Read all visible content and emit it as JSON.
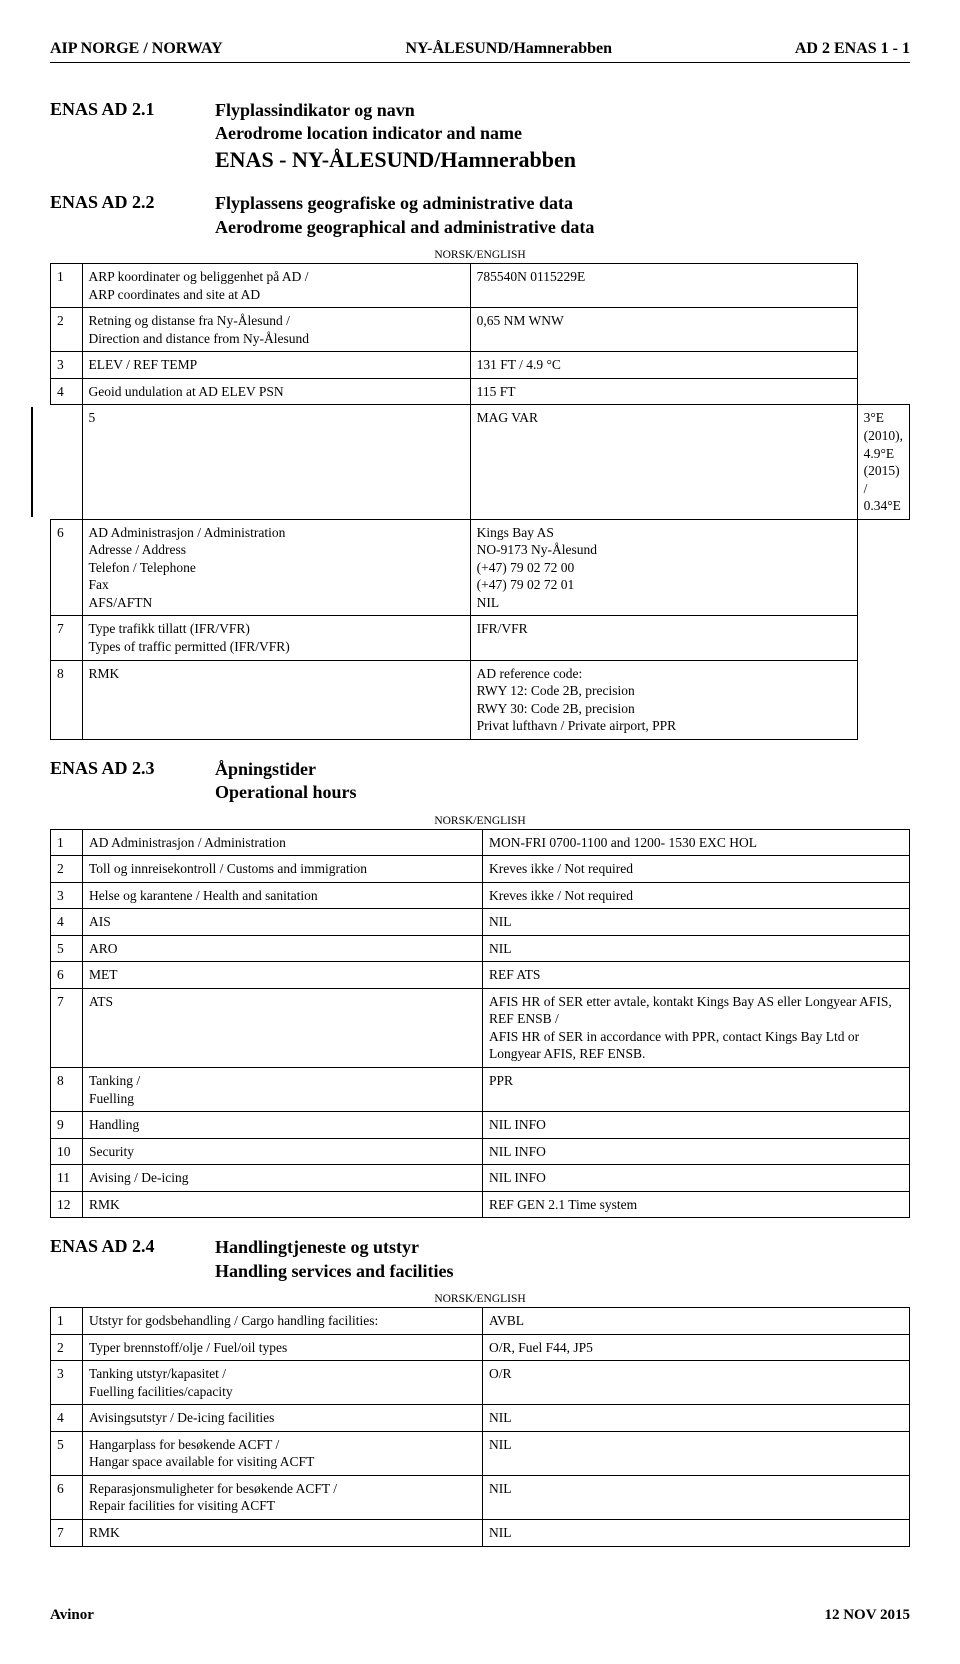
{
  "header": {
    "left": "AIP NORGE / NORWAY",
    "center": "NY-ÅLESUND/Hamnerabben",
    "right": "AD 2 ENAS 1 - 1"
  },
  "section1": {
    "code": "ENAS AD 2.1",
    "title_no": "Flyplassindikator og navn",
    "title_en": "Aerodrome location indicator and name",
    "main": "ENAS - NY-ÅLESUND/Hamnerabben"
  },
  "section2": {
    "code": "ENAS AD 2.2",
    "title_no": "Flyplassens geografiske og administrative data",
    "title_en": "Aerodrome geographical and administrative data",
    "caption": "NORSK/ENGLISH",
    "rows": [
      {
        "n": "1",
        "label": "ARP koordinater og beliggenhet på AD /\nARP coordinates and site at AD",
        "val": "785540N 0115229E"
      },
      {
        "n": "2",
        "label": "Retning og distanse fra Ny-Ålesund /\nDirection and distance from Ny-Ålesund",
        "val": "0,65 NM WNW"
      },
      {
        "n": "3",
        "label": "ELEV / REF TEMP",
        "val": "131 FT / 4.9 °C"
      },
      {
        "n": "4",
        "label": "Geoid undulation at AD ELEV PSN",
        "val": "115 FT"
      },
      {
        "n": "5",
        "label": "MAG VAR",
        "val": "3°E (2010), 4.9°E (2015) / 0.34°E",
        "changebar": true
      },
      {
        "n": "6",
        "label": "AD Administrasjon / Administration\nAdresse / Address\nTelefon / Telephone\nFax\nAFS/AFTN",
        "val": "Kings Bay AS\nNO-9173 Ny-Ålesund\n(+47) 79 02 72 00\n(+47) 79 02 72 01\nNIL"
      },
      {
        "n": "7",
        "label": "Type trafikk tillatt (IFR/VFR)\nTypes of traffic permitted (IFR/VFR)",
        "val": "IFR/VFR"
      },
      {
        "n": "8",
        "label": "RMK",
        "val": "AD reference code:\nRWY 12: Code 2B, precision\nRWY 30: Code 2B, precision\nPrivat lufthavn / Private airport, PPR"
      }
    ]
  },
  "section3": {
    "code": "ENAS AD 2.3",
    "title_no": "Åpningstider",
    "title_en": "Operational hours",
    "caption": "NORSK/ENGLISH",
    "rows": [
      {
        "n": "1",
        "label": "AD Administrasjon / Administration",
        "val": "MON-FRI 0700-1100 and 1200- 1530 EXC HOL"
      },
      {
        "n": "2",
        "label": "Toll og innreisekontroll / Customs and immigration",
        "val": "Kreves ikke / Not required"
      },
      {
        "n": "3",
        "label": "Helse og karantene / Health and sanitation",
        "val": "Kreves ikke / Not required"
      },
      {
        "n": "4",
        "label": "AIS",
        "val": "NIL"
      },
      {
        "n": "5",
        "label": "ARO",
        "val": "NIL"
      },
      {
        "n": "6",
        "label": "MET",
        "val": "REF ATS"
      },
      {
        "n": "7",
        "label": "ATS",
        "val": "AFIS HR of SER etter avtale, kontakt Kings Bay AS eller Longyear AFIS, REF ENSB /\nAFIS HR of SER in accordance with PPR, contact Kings Bay Ltd or Longyear AFIS, REF ENSB."
      },
      {
        "n": "8",
        "label": "Tanking /\nFuelling",
        "val": "PPR"
      },
      {
        "n": "9",
        "label": "Handling",
        "val": "NIL INFO"
      },
      {
        "n": "10",
        "label": "Security",
        "val": "NIL INFO"
      },
      {
        "n": "11",
        "label": "Avising / De-icing",
        "val": "NIL INFO"
      },
      {
        "n": "12",
        "label": "RMK",
        "val": "REF GEN 2.1 Time system"
      }
    ]
  },
  "section4": {
    "code": "ENAS AD 2.4",
    "title_no": "Handlingtjeneste og utstyr",
    "title_en": "Handling services and facilities",
    "caption": "NORSK/ENGLISH",
    "rows": [
      {
        "n": "1",
        "label": "Utstyr for godsbehandling / Cargo handling facilities:",
        "val": "AVBL"
      },
      {
        "n": "2",
        "label": "Typer brennstoff/olje / Fuel/oil types",
        "val": "O/R, Fuel F44, JP5"
      },
      {
        "n": "3",
        "label": "Tanking utstyr/kapasitet /\nFuelling facilities/capacity",
        "val": "O/R"
      },
      {
        "n": "4",
        "label": "Avisingsutstyr / De-icing facilities",
        "val": "NIL"
      },
      {
        "n": "5",
        "label": "Hangarplass for besøkende ACFT /\nHangar space available for visiting ACFT",
        "val": "NIL"
      },
      {
        "n": "6",
        "label": "Reparasjonsmuligheter for besøkende ACFT /\nRepair facilities for visiting ACFT",
        "val": "NIL"
      },
      {
        "n": "7",
        "label": "RMK",
        "val": "NIL"
      }
    ]
  },
  "footer": {
    "left": "Avinor",
    "right": "12 NOV 2015"
  }
}
